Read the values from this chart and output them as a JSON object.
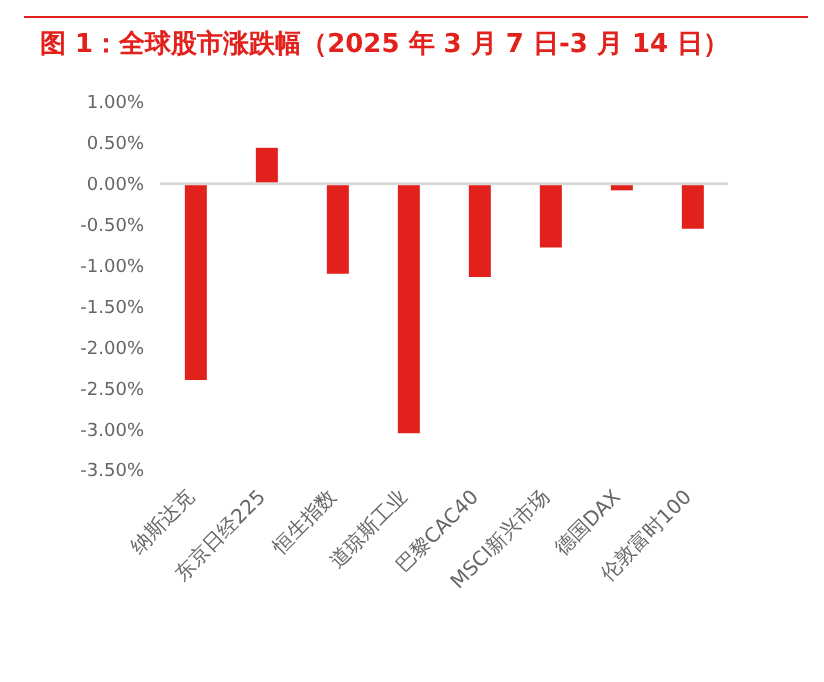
{
  "chart_data": {
    "type": "bar",
    "title": "图 1：全球股市涨跌幅（2025 年 3 月 7 日-3 月 14 日）",
    "categories": [
      "纳斯达克",
      "东京日经225",
      "恒生指数",
      "道琼斯工业",
      "巴黎CAC40",
      "MSCI新兴市场",
      "德国DAX",
      "伦敦富时100"
    ],
    "values": [
      -2.4,
      0.44,
      -1.1,
      -3.05,
      -1.14,
      -0.78,
      -0.08,
      -0.55
    ],
    "color": "#e3211c",
    "ylim": [
      -3.5,
      1
    ],
    "yticks": [
      {
        "value": 1,
        "label": "1.00%"
      },
      {
        "value": 0.5,
        "label": "0.50%"
      },
      {
        "value": 0,
        "label": "0.00%"
      },
      {
        "value": -0.5,
        "label": "-0.50%"
      },
      {
        "value": -1,
        "label": "-1.00%"
      },
      {
        "value": -1.5,
        "label": "-1.50%"
      },
      {
        "value": -2,
        "label": "-2.00%"
      },
      {
        "value": -2.5,
        "label": "-2.50%"
      },
      {
        "value": -3,
        "label": "-3.00%"
      },
      {
        "value": -3.5,
        "label": "-3.50%"
      }
    ]
  }
}
